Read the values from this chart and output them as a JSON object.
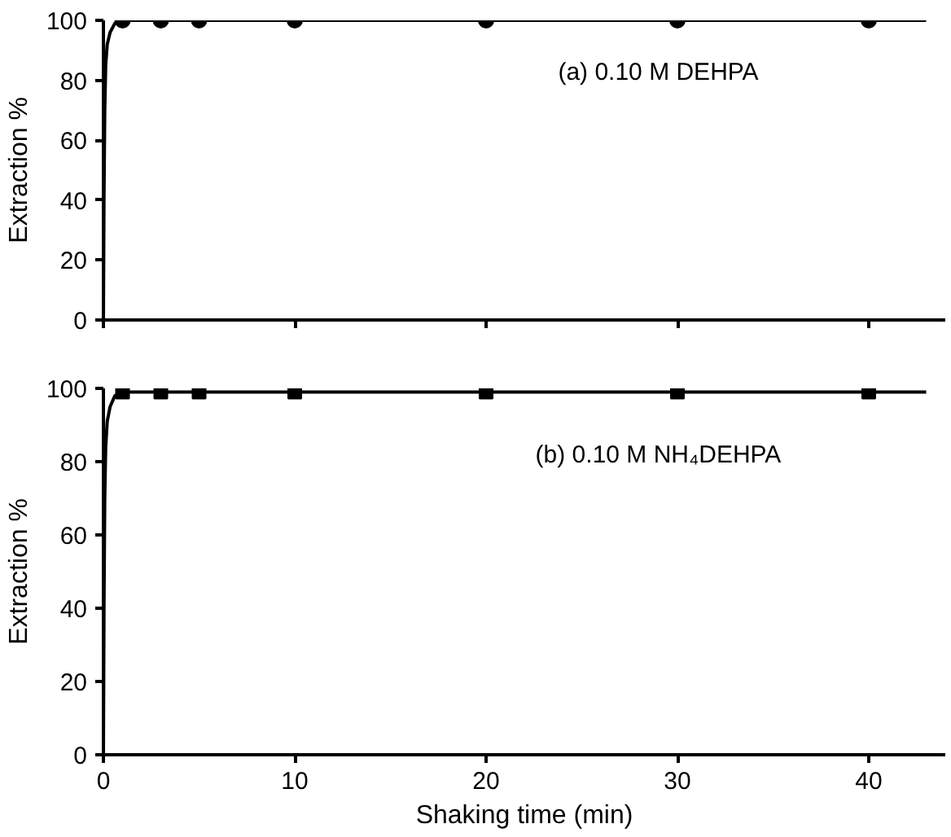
{
  "chart_data": [
    {
      "type": "line",
      "ylabel": "Extraction %",
      "xlim": [
        0,
        44
      ],
      "ylim": [
        0,
        100
      ],
      "xticks": [
        {
          "value": 0,
          "label": null
        },
        {
          "value": 10,
          "label": null
        },
        {
          "value": 20,
          "label": null
        },
        {
          "value": 30,
          "label": null
        },
        {
          "value": 40,
          "label": null
        }
      ],
      "yticks": [
        0,
        20,
        40,
        60,
        80,
        100
      ],
      "tick_labels": "y",
      "grid": false,
      "annotations": [
        "(a) 0.10 M DEHPA"
      ],
      "series": [
        {
          "marker": "none",
          "color": "#000000",
          "x": [
            0,
            0.03,
            0.07,
            0.12,
            0.2,
            0.35,
            0.6,
            1,
            43
          ],
          "values": [
            0,
            40,
            70,
            85,
            92,
            96,
            99,
            100,
            100
          ]
        },
        {
          "type": "scatter",
          "marker": "circle",
          "color": "#000000",
          "x": [
            1,
            3,
            5,
            10,
            20,
            30,
            40
          ],
          "values": [
            100,
            100,
            100,
            100,
            100,
            100,
            100
          ]
        }
      ]
    },
    {
      "type": "line",
      "ylabel": "Extraction %",
      "xlabel": "Shaking time (min)",
      "xlim": [
        0,
        44
      ],
      "ylim": [
        0,
        100
      ],
      "xticks": [
        0,
        10,
        20,
        30,
        40
      ],
      "yticks": [
        0,
        20,
        40,
        60,
        80,
        100
      ],
      "grid": false,
      "annotations": [
        "(b) 0.10 M NH₄DEHPA"
      ],
      "series": [
        {
          "marker": "none",
          "color": "#000000",
          "x": [
            0,
            0.03,
            0.07,
            0.12,
            0.2,
            0.35,
            0.6,
            1,
            43
          ],
          "values": [
            0,
            40,
            70,
            84,
            91,
            95,
            98,
            99,
            99
          ]
        },
        {
          "type": "scatter",
          "marker": "square",
          "color": "#000000",
          "x": [
            1,
            3,
            5,
            10,
            20,
            30,
            40
          ],
          "values": [
            99,
            99,
            99,
            99,
            99,
            99,
            99
          ]
        }
      ]
    }
  ]
}
